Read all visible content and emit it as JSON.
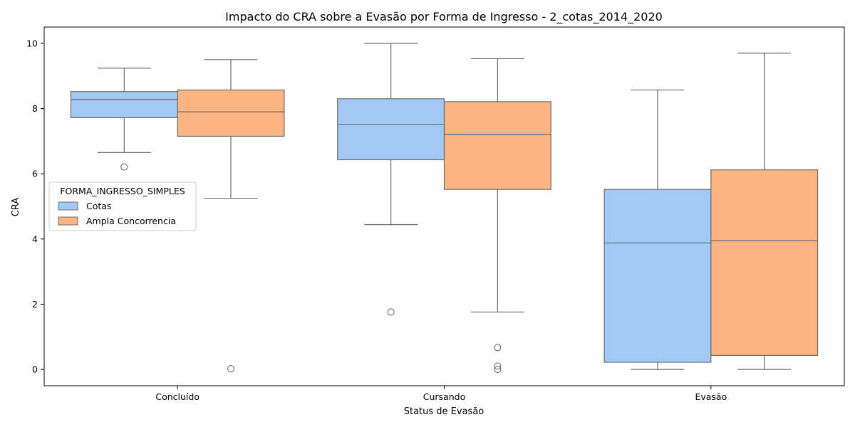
{
  "chart_data": {
    "type": "box",
    "title": "Impacto do CRA sobre a Evasão por Forma de Ingresso - 2_cotas_2014_2020",
    "xlabel": "Status de Evasão",
    "ylabel": "CRA",
    "ylim": [
      -0.5,
      10.5
    ],
    "yticks": [
      0,
      2,
      4,
      6,
      8,
      10
    ],
    "categories": [
      "Concluído",
      "Cursando",
      "Evasão"
    ],
    "grid": false,
    "legend": {
      "title": "FORMA_INGRESSO_SIMPLES",
      "placement": "center-left"
    },
    "series": [
      {
        "name": "Cotas",
        "color": "#a1c9f4",
        "boxes": [
          {
            "whisker_low": 6.65,
            "q1": 7.72,
            "median": 8.28,
            "q3": 8.52,
            "whisker_high": 9.24,
            "outliers": [
              6.21
            ]
          },
          {
            "whisker_low": 4.44,
            "q1": 6.43,
            "median": 7.52,
            "q3": 8.3,
            "whisker_high": 10.0,
            "outliers": [
              1.76
            ]
          },
          {
            "whisker_low": 0.0,
            "q1": 0.22,
            "median": 3.88,
            "q3": 5.52,
            "whisker_high": 8.57,
            "outliers": []
          }
        ]
      },
      {
        "name": "Ampla Concorrencia",
        "color": "#ffb482",
        "boxes": [
          {
            "whisker_low": 5.25,
            "q1": 7.15,
            "median": 7.9,
            "q3": 8.57,
            "whisker_high": 9.5,
            "outliers": [
              0.02
            ]
          },
          {
            "whisker_low": 1.76,
            "q1": 5.52,
            "median": 7.21,
            "q3": 8.21,
            "whisker_high": 9.53,
            "outliers": [
              0.67,
              0.1,
              0.0
            ]
          },
          {
            "whisker_low": 0.0,
            "q1": 0.43,
            "median": 3.95,
            "q3": 6.12,
            "whisker_high": 9.7,
            "outliers": []
          }
        ]
      }
    ]
  }
}
